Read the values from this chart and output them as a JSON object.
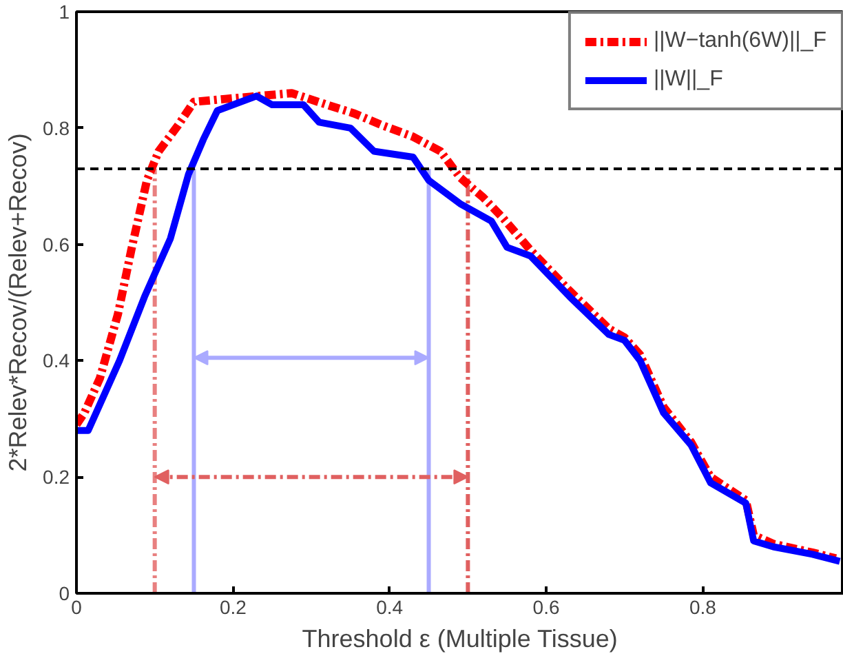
{
  "chart_data": {
    "type": "line",
    "xlabel": "Threshold ε (Multiple Tissue)",
    "ylabel": "2*Relev*Recov/(Relev+Recov)",
    "xlim": [
      0,
      0.98
    ],
    "xticks": [
      0,
      0.2,
      0.4,
      0.6,
      0.8
    ],
    "ylim": [
      0,
      1
    ],
    "yticks": [
      0,
      0.2,
      0.4,
      0.6,
      0.8,
      1
    ],
    "grid": false,
    "legend": "top right",
    "marker": "none",
    "series": [
      {
        "name": "||W−tanh(6W)||_F",
        "color": "#ff0000",
        "line_style": "dashdot",
        "x": [
          0,
          0.01,
          0.03,
          0.053,
          0.07,
          0.09,
          0.105,
          0.13,
          0.15,
          0.19,
          0.275,
          0.32,
          0.355,
          0.39,
          0.43,
          0.465,
          0.49,
          0.52,
          0.545,
          0.58,
          0.63,
          0.68,
          0.7,
          0.72,
          0.75,
          0.785,
          0.81,
          0.855,
          0.865,
          0.89,
          0.94,
          0.97
        ],
        "values": [
          0.29,
          0.31,
          0.37,
          0.48,
          0.59,
          0.71,
          0.76,
          0.805,
          0.845,
          0.85,
          0.86,
          0.84,
          0.825,
          0.805,
          0.785,
          0.76,
          0.715,
          0.68,
          0.645,
          0.59,
          0.52,
          0.455,
          0.44,
          0.41,
          0.32,
          0.26,
          0.2,
          0.16,
          0.1,
          0.085,
          0.07,
          0.06
        ]
      },
      {
        "name": "||W||_F",
        "color": "#0000ff",
        "line_style": "solid",
        "x": [
          0,
          0.015,
          0.055,
          0.087,
          0.12,
          0.143,
          0.162,
          0.18,
          0.23,
          0.25,
          0.29,
          0.31,
          0.35,
          0.38,
          0.43,
          0.45,
          0.49,
          0.53,
          0.55,
          0.58,
          0.63,
          0.68,
          0.7,
          0.72,
          0.75,
          0.785,
          0.81,
          0.855,
          0.865,
          0.89,
          0.94,
          0.975
        ],
        "values": [
          0.28,
          0.28,
          0.4,
          0.51,
          0.61,
          0.72,
          0.78,
          0.83,
          0.855,
          0.84,
          0.84,
          0.81,
          0.8,
          0.76,
          0.75,
          0.71,
          0.67,
          0.64,
          0.595,
          0.58,
          0.51,
          0.445,
          0.435,
          0.4,
          0.31,
          0.255,
          0.19,
          0.155,
          0.09,
          0.08,
          0.067,
          0.055
        ]
      }
    ],
    "ref_lines": [
      {
        "axis": "y",
        "value": 0.73,
        "color": "#000000",
        "line_style": "dashed"
      },
      {
        "axis": "x",
        "value": 0.15,
        "color": "#aaaaff",
        "line_style": "solid"
      },
      {
        "axis": "x",
        "value": 0.45,
        "color": "#aaaaff",
        "line_style": "solid"
      },
      {
        "axis": "x",
        "value": 0.1,
        "color": "#e88080",
        "line_style": "dashdot"
      },
      {
        "axis": "x",
        "value": 0.5,
        "color": "#e06060",
        "line_style": "dashdot"
      }
    ]
  }
}
